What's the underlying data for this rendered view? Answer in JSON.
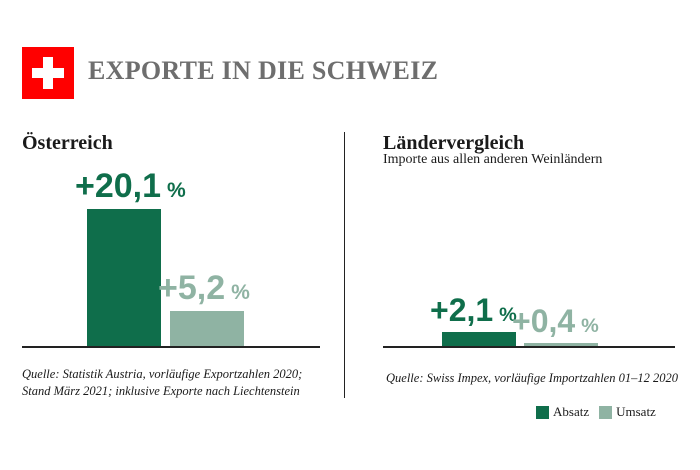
{
  "header": {
    "title": "EXPORTE IN DIE SCHWEIZ",
    "flag_icon": "swiss-flag-icon"
  },
  "colors": {
    "absatz": "#0f6e4b",
    "umsatz": "#8fb3a3",
    "flag_red": "#ff0000"
  },
  "legend": [
    {
      "label": "Absatz",
      "color": "#0f6e4b"
    },
    {
      "label": "Umsatz",
      "color": "#8fb3a3"
    }
  ],
  "chart_data": [
    {
      "type": "bar",
      "title": "Österreich",
      "subtitle": "",
      "categories": [
        "Absatz",
        "Umsatz"
      ],
      "values": [
        20.1,
        5.2
      ],
      "labels": [
        {
          "number": "+20,1",
          "unit": "%"
        },
        {
          "number": "+5,2",
          "unit": "%"
        }
      ],
      "source_lines": [
        "Quelle: Statistik Austria, vorläufige Exportzahlen 2020;",
        "Stand März 2021; inklusive Exporte nach Liechtenstein"
      ]
    },
    {
      "type": "bar",
      "title": "Ländervergleich",
      "subtitle": "Importe aus allen anderen Weinländern",
      "categories": [
        "Absatz",
        "Umsatz"
      ],
      "values": [
        2.1,
        0.4
      ],
      "labels": [
        {
          "number": "+2,1",
          "unit": "%"
        },
        {
          "number": "+0,4",
          "unit": "%"
        }
      ],
      "source_lines": [
        "Quelle: Swiss Impex, vorläufige Importzahlen 01–12 2020"
      ]
    }
  ]
}
